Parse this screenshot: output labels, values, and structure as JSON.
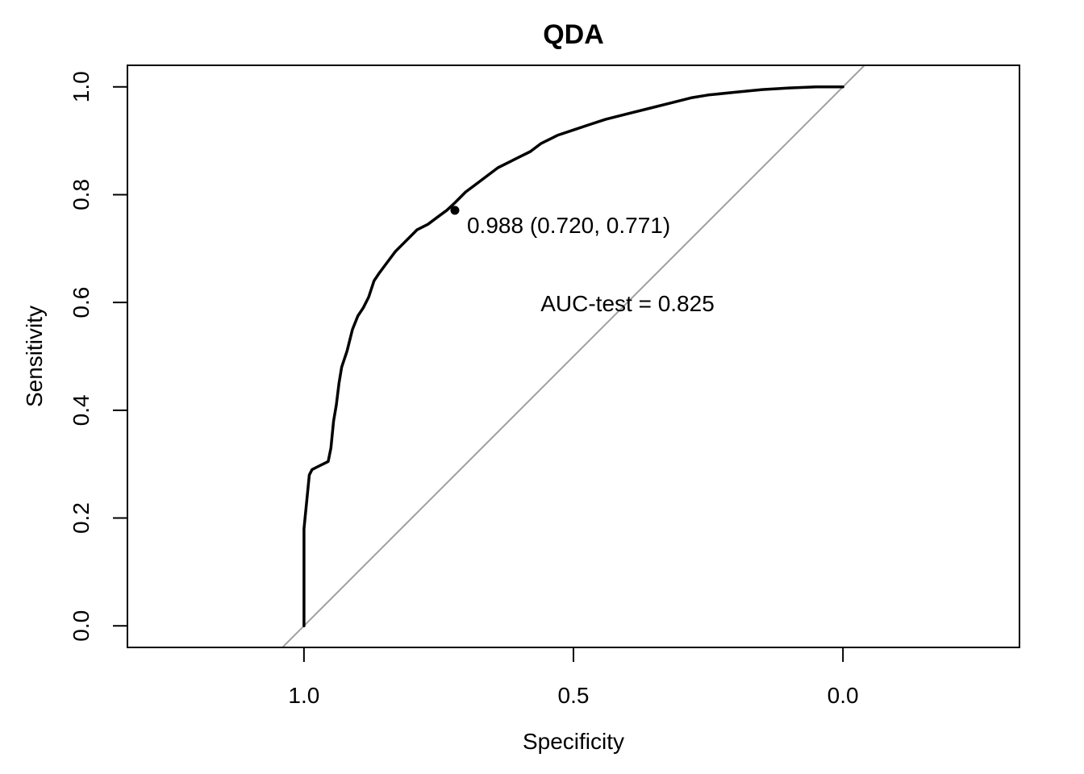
{
  "chart_data": {
    "type": "line",
    "title": "QDA",
    "xlabel": "Specificity",
    "ylabel": "Sensitivity",
    "x_reversed": true,
    "xlim": [
      1.3275,
      -0.3275
    ],
    "ylim": [
      -0.04,
      1.04
    ],
    "x_ticks": [
      {
        "value": 1.0,
        "label": "1.0"
      },
      {
        "value": 0.5,
        "label": "0.5"
      },
      {
        "value": 0.0,
        "label": "0.0"
      }
    ],
    "y_ticks": [
      {
        "value": 0.0,
        "label": "0.0"
      },
      {
        "value": 0.2,
        "label": "0.2"
      },
      {
        "value": 0.4,
        "label": "0.4"
      },
      {
        "value": 0.6,
        "label": "0.6"
      },
      {
        "value": 0.8,
        "label": "0.8"
      },
      {
        "value": 1.0,
        "label": "1.0"
      }
    ],
    "grid": false,
    "colors": {
      "curve": "#000000",
      "diagonal": "#a0a0a0",
      "frame": "#000000"
    },
    "series": [
      {
        "x": [
          1.0,
          1.0,
          1.0,
          0.998,
          0.995,
          0.99,
          0.985,
          0.975,
          0.965,
          0.955,
          0.95,
          0.945,
          0.94,
          0.935,
          0.93,
          0.92,
          0.91,
          0.9,
          0.89,
          0.88,
          0.87,
          0.86,
          0.845,
          0.83,
          0.81,
          0.79,
          0.77,
          0.75,
          0.735,
          0.72,
          0.7,
          0.68,
          0.66,
          0.64,
          0.62,
          0.6,
          0.58,
          0.56,
          0.54,
          0.53,
          0.5,
          0.47,
          0.44,
          0.4,
          0.36,
          0.32,
          0.28,
          0.25,
          0.2,
          0.15,
          0.1,
          0.05,
          0.0
        ],
        "y": [
          0.0,
          0.1,
          0.18,
          0.2,
          0.23,
          0.28,
          0.29,
          0.295,
          0.3,
          0.305,
          0.33,
          0.38,
          0.41,
          0.45,
          0.48,
          0.51,
          0.55,
          0.575,
          0.59,
          0.61,
          0.64,
          0.655,
          0.675,
          0.695,
          0.715,
          0.735,
          0.745,
          0.76,
          0.771,
          0.785,
          0.805,
          0.82,
          0.835,
          0.85,
          0.86,
          0.87,
          0.88,
          0.895,
          0.905,
          0.91,
          0.92,
          0.93,
          0.94,
          0.95,
          0.96,
          0.97,
          0.98,
          0.985,
          0.99,
          0.995,
          0.998,
          1.0,
          1.0
        ]
      }
    ],
    "reference_line": {
      "from": [
        1.0,
        0.0
      ],
      "to": [
        0.0,
        1.0
      ]
    },
    "threshold_point": {
      "x": 0.72,
      "y": 0.771,
      "label": "0.988 (0.720, 0.771)"
    },
    "annotation": {
      "text": "AUC-test = 0.825",
      "x": 0.5,
      "y": 0.6
    }
  }
}
